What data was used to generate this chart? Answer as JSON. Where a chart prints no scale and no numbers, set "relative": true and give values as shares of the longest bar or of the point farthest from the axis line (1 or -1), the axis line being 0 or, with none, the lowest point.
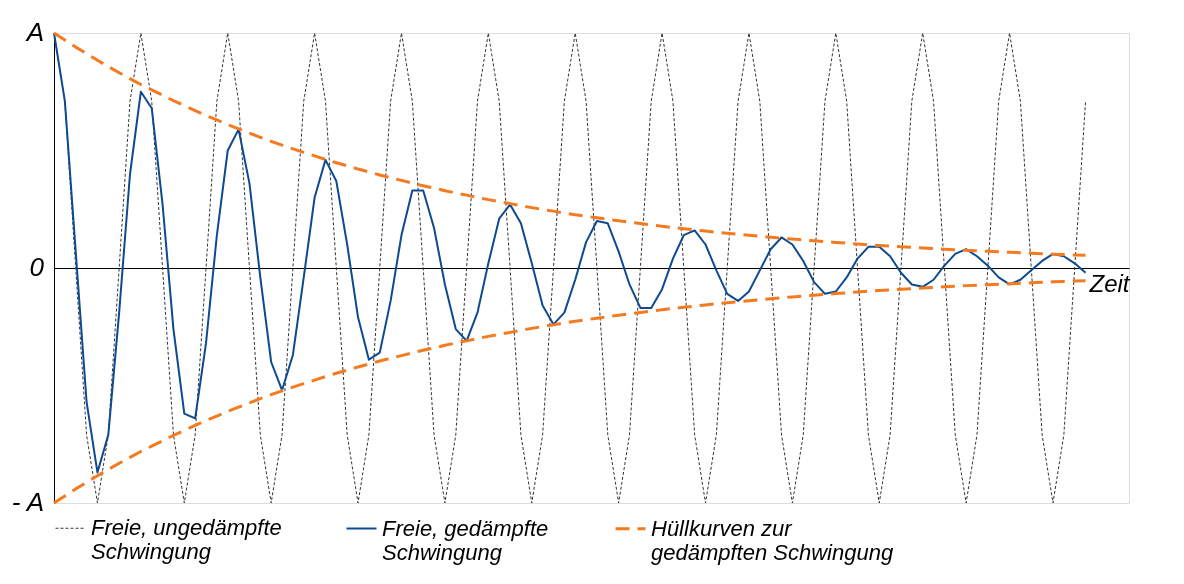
{
  "chart_data": {
    "type": "line",
    "xlabel": "Zeit",
    "categories": [
      null,
      null,
      null,
      null,
      null,
      null,
      null,
      null,
      null,
      null,
      null,
      null,
      null,
      null,
      null,
      null,
      null,
      null,
      null,
      null,
      null,
      null,
      null,
      null,
      null,
      null,
      null,
      null,
      null,
      null,
      null,
      null,
      null,
      null,
      null,
      null,
      null,
      null,
      null,
      null,
      null,
      null,
      null,
      null,
      null,
      null,
      null,
      null,
      null,
      null,
      null,
      null,
      null,
      null,
      null,
      null,
      null,
      null,
      null,
      null,
      null,
      null,
      null,
      null,
      null,
      null,
      null,
      null,
      null,
      null,
      null,
      null,
      null,
      null,
      null,
      null,
      null,
      null,
      null,
      null,
      null,
      null,
      null,
      null,
      null,
      null,
      null,
      null,
      null,
      null,
      null,
      null,
      null,
      null,
      null,
      null,
      null,
      null,
      null,
      null
    ],
    "relative": true,
    "annotations": [
      "A",
      "0",
      "- A"
    ],
    "tick_labels": false,
    "grid": false,
    "legend": "bottom",
    "series": [
      {
        "name": "Freie, ungedämpfte\nSchwingung",
        "color": "#333333",
        "line_style": "dotted",
        "values": [
          1,
          0.71,
          0,
          -0.71,
          -1,
          -0.71,
          0,
          0.71,
          1,
          0.71,
          0,
          -0.71,
          -1,
          -0.71,
          0,
          0.71,
          1,
          0.71,
          0,
          -0.71,
          -1,
          -0.71,
          0,
          0.71,
          1,
          0.71,
          0,
          -0.71,
          -1,
          -0.71,
          0,
          0.71,
          1,
          0.71,
          0,
          -0.71,
          -1,
          -0.71,
          0,
          0.71,
          1,
          0.71,
          0,
          -0.71,
          -1,
          -0.71,
          0,
          0.71,
          1,
          0.71,
          0,
          -0.71,
          -1,
          -0.71,
          0,
          0.71,
          1,
          0.71,
          0,
          -0.71,
          -1,
          -0.71,
          0,
          0.71,
          1,
          0.71,
          0,
          -0.71,
          -1,
          -0.71,
          0,
          0.71,
          1,
          0.71,
          0,
          -0.71,
          -1,
          -0.71,
          0,
          0.71,
          1,
          0.71,
          0,
          -0.71,
          -1,
          -0.71,
          0,
          0.71,
          1,
          0.71,
          0,
          -0.71,
          -1,
          -0.71,
          0,
          0.71,
          null,
          null,
          null,
          null
        ]
      },
      {
        "name": "Freie, gedämpfte\nSchwingung",
        "color": "#0d4a8f",
        "line_style": "solid",
        "values": [
          1,
          0.71,
          0.07,
          -0.57,
          -0.87,
          -0.71,
          -0.19,
          0.4,
          0.75,
          0.68,
          0.27,
          -0.26,
          -0.62,
          -0.64,
          -0.32,
          0.14,
          0.5,
          0.59,
          0.36,
          -0.04,
          -0.4,
          -0.52,
          -0.37,
          -0.04,
          0.3,
          0.46,
          0.37,
          0.1,
          -0.21,
          -0.39,
          -0.36,
          -0.14,
          0.14,
          0.33,
          0.33,
          0.17,
          -0.07,
          -0.26,
          -0.31,
          -0.19,
          0.02,
          0.21,
          0.27,
          0.19,
          0.02,
          -0.16,
          -0.24,
          -0.19,
          -0.05,
          0.11,
          0.2,
          0.19,
          0.07,
          -0.07,
          -0.17,
          -0.17,
          -0.09,
          0.04,
          0.14,
          0.16,
          0.1,
          -0.01,
          -0.11,
          -0.14,
          -0.1,
          -0.01,
          0.08,
          0.13,
          0.1,
          0.03,
          -0.06,
          -0.11,
          -0.1,
          -0.04,
          0.04,
          0.09,
          0.09,
          0.05,
          -0.02,
          -0.07,
          -0.08,
          -0.05,
          0.01,
          0.06,
          0.08,
          0.05,
          0.01,
          -0.04,
          -0.07,
          -0.05,
          -0.01,
          0.03,
          0.06,
          0.05,
          0.02,
          -0.02,
          null,
          null,
          null,
          null
        ]
      },
      {
        "name": "Hüllkurven zur\ngedämpften Schwingung",
        "color": "#f47a20",
        "line_style": "dashed",
        "values": [
          1,
          0.97,
          0.94,
          0.912,
          0.884,
          0.857,
          0.831,
          0.806,
          0.781,
          0.758,
          0.735,
          0.712,
          0.691,
          0.67,
          0.649,
          0.63,
          0.61,
          0.592,
          0.574,
          0.556,
          0.539,
          0.523,
          0.507,
          0.492,
          0.477,
          0.462,
          0.448,
          0.435,
          0.421,
          0.409,
          0.396,
          0.384,
          0.373,
          0.361,
          0.35,
          0.34,
          0.329,
          0.319,
          0.31,
          0.3,
          0.291,
          0.282,
          0.274,
          0.265,
          0.257,
          0.249,
          0.242,
          0.234,
          0.227,
          0.22,
          0.214,
          0.207,
          0.201,
          0.195,
          0.189,
          0.183,
          0.178,
          0.172,
          0.167,
          0.162,
          0.157,
          0.152,
          0.148,
          0.143,
          0.139,
          0.135,
          0.131,
          0.127,
          0.123,
          0.119,
          0.116,
          0.112,
          0.109,
          0.106,
          0.102,
          0.099,
          0.096,
          0.093,
          0.09,
          0.088,
          0.085,
          0.083,
          0.08,
          0.078,
          0.075,
          0.073,
          0.071,
          0.069,
          0.067,
          0.065,
          0.063,
          0.061,
          0.059,
          0.057,
          0.055,
          0.054,
          null,
          null,
          null,
          null
        ]
      },
      {
        "color": "#f47a20",
        "line_style": "dashed",
        "values": [
          -1,
          -0.97,
          -0.94,
          -0.912,
          -0.884,
          -0.857,
          -0.831,
          -0.806,
          -0.781,
          -0.758,
          -0.735,
          -0.712,
          -0.691,
          -0.67,
          -0.649,
          -0.63,
          -0.61,
          -0.592,
          -0.574,
          -0.556,
          -0.539,
          -0.523,
          -0.507,
          -0.492,
          -0.477,
          -0.462,
          -0.448,
          -0.435,
          -0.421,
          -0.409,
          -0.396,
          -0.384,
          -0.373,
          -0.361,
          -0.35,
          -0.34,
          -0.329,
          -0.319,
          -0.31,
          -0.3,
          -0.291,
          -0.282,
          -0.274,
          -0.265,
          -0.257,
          -0.249,
          -0.242,
          -0.234,
          -0.227,
          -0.22,
          -0.214,
          -0.207,
          -0.201,
          -0.195,
          -0.189,
          -0.183,
          -0.178,
          -0.172,
          -0.167,
          -0.162,
          -0.157,
          -0.152,
          -0.148,
          -0.143,
          -0.139,
          -0.135,
          -0.131,
          -0.127,
          -0.123,
          -0.119,
          -0.116,
          -0.112,
          -0.109,
          -0.106,
          -0.102,
          -0.099,
          -0.096,
          -0.093,
          -0.09,
          -0.088,
          -0.085,
          -0.083,
          -0.08,
          -0.078,
          -0.075,
          -0.073,
          -0.071,
          -0.069,
          -0.067,
          -0.065,
          -0.063,
          -0.061,
          -0.059,
          -0.057,
          -0.055,
          -0.054,
          null,
          null,
          null,
          null
        ]
      }
    ]
  }
}
